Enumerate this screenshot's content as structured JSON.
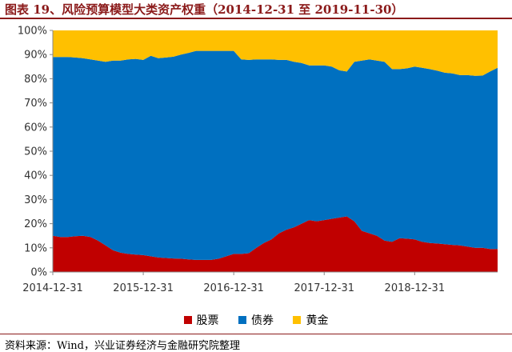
{
  "title": "图表 19、风险预算模型大类资产权重（2014-12-31 至 2019-11-30）",
  "source": "资料来源：Wind，兴业证券经济与金融研究院整理",
  "chart_data": {
    "type": "area",
    "stacked": true,
    "stacked_to_percent": true,
    "x_tick_labels": [
      "2014-12-31",
      "2015-12-31",
      "2016-12-31",
      "2017-12-31",
      "2018-12-31"
    ],
    "y_tick_labels": [
      "0%",
      "10%",
      "20%",
      "30%",
      "40%",
      "50%",
      "60%",
      "70%",
      "80%",
      "90%",
      "100%"
    ],
    "ylim": [
      0,
      100
    ],
    "grid": false,
    "legend_position": "bottom",
    "colors": {
      "股票": "#c00000",
      "债券": "#0070c0",
      "黄金": "#ffc000"
    },
    "x": [
      "2014-12",
      "2015-01",
      "2015-02",
      "2015-03",
      "2015-04",
      "2015-05",
      "2015-06",
      "2015-07",
      "2015-08",
      "2015-09",
      "2015-10",
      "2015-11",
      "2015-12",
      "2016-01",
      "2016-02",
      "2016-03",
      "2016-04",
      "2016-05",
      "2016-06",
      "2016-07",
      "2016-08",
      "2016-09",
      "2016-10",
      "2016-11",
      "2016-12",
      "2017-01",
      "2017-02",
      "2017-03",
      "2017-04",
      "2017-05",
      "2017-06",
      "2017-07",
      "2017-08",
      "2017-09",
      "2017-10",
      "2017-11",
      "2017-12",
      "2018-01",
      "2018-02",
      "2018-03",
      "2018-04",
      "2018-05",
      "2018-06",
      "2018-07",
      "2018-08",
      "2018-09",
      "2018-10",
      "2018-11",
      "2018-12",
      "2019-01",
      "2019-02",
      "2019-03",
      "2019-04",
      "2019-05",
      "2019-06",
      "2019-07",
      "2019-08",
      "2019-09",
      "2019-10",
      "2019-11"
    ],
    "series": [
      {
        "name": "股票",
        "values": [
          15,
          14.5,
          14.5,
          14.8,
          15,
          14.5,
          13,
          11,
          9,
          8,
          7.5,
          7.2,
          7,
          6.5,
          6,
          5.8,
          5.6,
          5.5,
          5.2,
          5,
          5,
          5,
          5.5,
          6.5,
          7.5,
          7.5,
          7.8,
          10,
          12,
          13.5,
          16,
          17.5,
          18.5,
          20,
          21.5,
          21,
          21.5,
          22,
          22.5,
          23,
          21,
          17,
          16,
          15,
          13,
          12.5,
          14,
          13.8,
          13.5,
          12.5,
          12,
          11.8,
          11.5,
          11.2,
          11,
          10.5,
          10,
          10,
          9.5,
          9.5
        ]
      },
      {
        "name": "债券",
        "values": [
          74,
          74.5,
          74.5,
          74,
          73.5,
          73.5,
          74.5,
          76,
          78.5,
          79.5,
          80.5,
          81,
          80.8,
          83,
          82.5,
          83,
          83.5,
          84.5,
          85.5,
          86.5,
          86.5,
          86.5,
          86,
          85,
          84,
          80.5,
          80,
          78,
          76,
          74.5,
          71.8,
          70.3,
          68.5,
          66.5,
          64,
          64.5,
          64,
          63,
          61,
          60,
          66,
          70.5,
          72,
          72.5,
          74,
          71.5,
          70,
          70.5,
          71.5,
          72,
          72,
          71.5,
          71,
          71,
          70.5,
          71,
          71.2,
          71.3,
          73.5,
          75
        ]
      },
      {
        "name": "黄金",
        "values": [
          11,
          11,
          11,
          11.2,
          11.5,
          12,
          12.5,
          13,
          12.5,
          12.5,
          12,
          11.8,
          12.2,
          10.5,
          11.5,
          11.2,
          10.9,
          10,
          9.3,
          8.5,
          8.5,
          8.5,
          8.5,
          8.5,
          8.5,
          12,
          12.2,
          12,
          12,
          12,
          12.2,
          12.2,
          13,
          13.5,
          14.5,
          14.5,
          14.5,
          15,
          16.5,
          17,
          13,
          12.5,
          12,
          12.5,
          13,
          16,
          16,
          15.7,
          15,
          15.5,
          16,
          16.7,
          17.5,
          17.8,
          18.5,
          18.5,
          18.8,
          18.7,
          17,
          15.5
        ]
      }
    ]
  }
}
